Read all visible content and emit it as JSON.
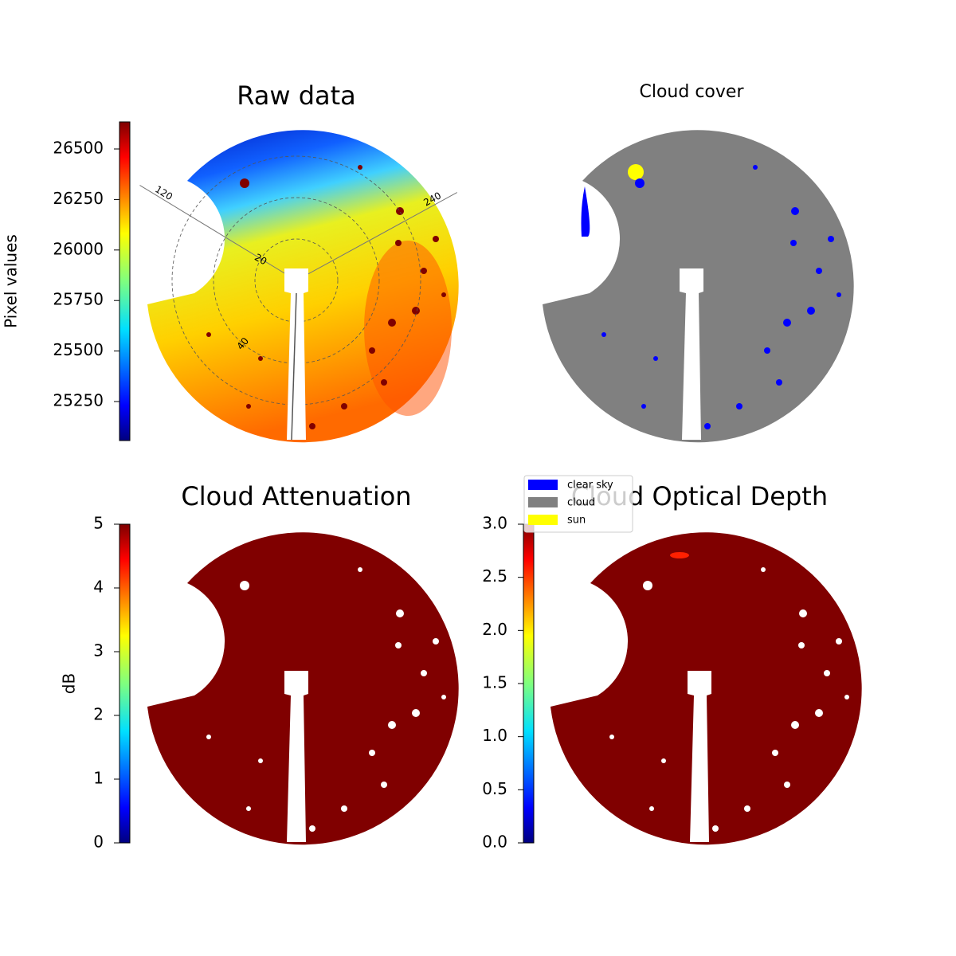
{
  "chart_data": [
    {
      "type": "image",
      "title": "Raw data",
      "colorbar": {
        "label": "Pixel values",
        "cmap": "jet",
        "lim": [
          25057,
          26634
        ],
        "ticks": [
          25250,
          25500,
          25750,
          26000,
          26250,
          26500
        ]
      },
      "azimuth_ticks": [
        120,
        240
      ],
      "zenith_ticks": [
        20,
        40
      ]
    },
    {
      "type": "image",
      "title": "Cloud cover",
      "image_color": "#808080",
      "legend": [
        {
          "name": "clear sky",
          "color": "#0000ff"
        },
        {
          "name": "cloud",
          "color": "#808080"
        },
        {
          "name": "sun",
          "color": "#ffff00"
        }
      ]
    },
    {
      "type": "image",
      "title": "Cloud Attenuation",
      "image_color": "#800000",
      "colorbar": {
        "label": "dB",
        "cmap": "jet",
        "lim": [
          0,
          5
        ],
        "ticks": [
          0,
          1,
          2,
          3,
          4,
          5
        ]
      }
    },
    {
      "type": "image",
      "title": "Cloud Optical Depth",
      "image_color": "#800000",
      "colorbar": {
        "cmap": "jet",
        "lim": [
          0,
          3
        ],
        "ticks": [
          {
            "value": 0,
            "label": "0.0"
          },
          0.5,
          {
            "value": 1,
            "label": "1.0"
          },
          1.5,
          {
            "value": 2,
            "label": "2.0"
          },
          2.5,
          {
            "value": 3,
            "label": "3.0"
          }
        ]
      }
    }
  ]
}
